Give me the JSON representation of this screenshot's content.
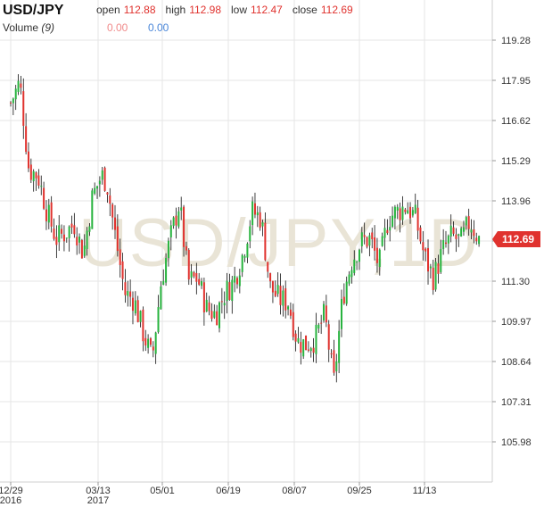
{
  "header": {
    "symbol": "USD/JPY",
    "open_label": "open",
    "open_value": "112.88",
    "high_label": "high",
    "high_value": "112.98",
    "low_label": "low",
    "low_value": "112.47",
    "close_label": "close",
    "close_value": "112.69",
    "volume_label": "Volume",
    "volume_period": "(9)",
    "volume_value_1": "0.00",
    "volume_value_2": "0.00"
  },
  "chart_data": {
    "type": "candlestick",
    "title": "USD/JPY",
    "watermark": "USD/JPY,1D",
    "ylim": [
      104.65,
      120.61
    ],
    "y_ticks": [
      "119.28",
      "117.95",
      "116.62",
      "115.29",
      "113.96",
      "112.63",
      "111.30",
      "109.97",
      "108.64",
      "107.31",
      "105.98"
    ],
    "x_ticks": [
      "12/29",
      "03/13",
      "05/01",
      "06/19",
      "08/07",
      "09/25",
      "11/13"
    ],
    "x_year_labels": [
      {
        "under": "12/29",
        "text": "2016"
      },
      {
        "under": "03/13",
        "text": "2017"
      }
    ],
    "last_price": "112.69",
    "colors": {
      "up": "#27b33e",
      "down": "#e0322e",
      "wick": "#111111",
      "last_price": "#e0322e",
      "grid": "#e6e6e6"
    },
    "approx_close_path": [
      [
        "12/29",
        117.2
      ],
      [
        "01/05",
        117.9
      ],
      [
        "01/12",
        115.0
      ],
      [
        "01/19",
        114.8
      ],
      [
        "01/26",
        113.6
      ],
      [
        "02/02",
        112.7
      ],
      [
        "02/09",
        112.9
      ],
      [
        "02/16",
        113.2
      ],
      [
        "02/23",
        112.2
      ],
      [
        "03/02",
        114.1
      ],
      [
        "03/09",
        114.8
      ],
      [
        "03/13",
        114.6
      ],
      [
        "03/20",
        112.7
      ],
      [
        "03/27",
        110.9
      ],
      [
        "04/03",
        110.7
      ],
      [
        "04/10",
        109.6
      ],
      [
        "04/17",
        108.7
      ],
      [
        "04/24",
        111.3
      ],
      [
        "05/01",
        112.7
      ],
      [
        "05/08",
        113.9
      ],
      [
        "05/15",
        111.3
      ],
      [
        "05/22",
        111.4
      ],
      [
        "05/29",
        110.4
      ],
      [
        "06/05",
        110.2
      ],
      [
        "06/12",
        110.9
      ],
      [
        "06/19",
        111.3
      ],
      [
        "06/26",
        112.2
      ],
      [
        "07/03",
        113.6
      ],
      [
        "07/10",
        113.4
      ],
      [
        "07/17",
        111.1
      ],
      [
        "07/24",
        110.7
      ],
      [
        "07/31",
        110.6
      ],
      [
        "08/07",
        109.3
      ],
      [
        "08/14",
        109.2
      ],
      [
        "08/21",
        109.4
      ],
      [
        "08/28",
        110.2
      ],
      [
        "09/04",
        107.9
      ],
      [
        "09/11",
        110.8
      ],
      [
        "09/18",
        112.0
      ],
      [
        "09/25",
        112.6
      ],
      [
        "10/02",
        112.7
      ],
      [
        "10/09",
        111.8
      ],
      [
        "10/16",
        113.4
      ],
      [
        "10/23",
        113.6
      ],
      [
        "10/30",
        113.8
      ],
      [
        "11/06",
        113.4
      ],
      [
        "11/13",
        112.1
      ],
      [
        "11/20",
        111.4
      ],
      [
        "11/27",
        112.3
      ],
      [
        "12/04",
        112.8
      ],
      [
        "12/11",
        112.6
      ],
      [
        "12/18",
        113.3
      ],
      [
        "12/25",
        112.69
      ]
    ]
  }
}
